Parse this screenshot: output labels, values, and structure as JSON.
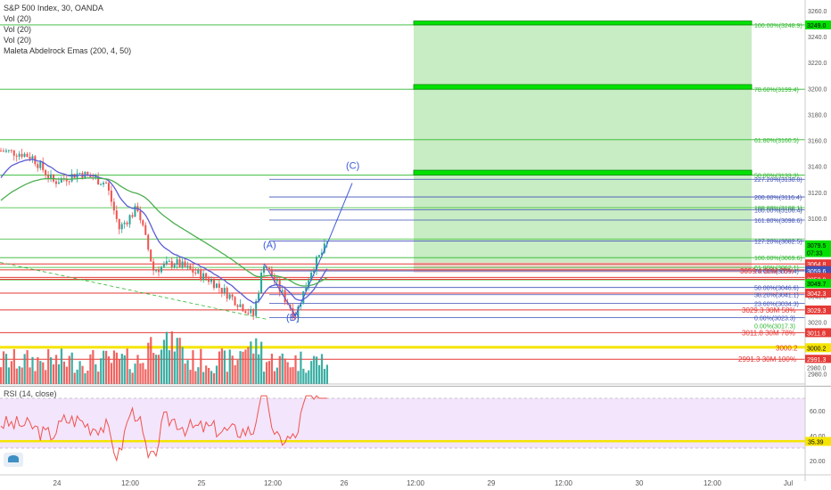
{
  "header": {
    "title": "S&P 500 Index, 30, OANDA",
    "indicators": [
      "Vol (20)",
      "Vol (20)",
      "Vol (20)",
      "Maleta Abdelrock Emas (200, 4, 50)"
    ]
  },
  "rsi": {
    "label": "RSI (14, close)",
    "ticks": [
      60,
      40,
      20
    ],
    "level_label": "35.39"
  },
  "colors": {
    "candle_up": "#26a69a",
    "candle_down": "#ef5350",
    "ema_blue": "#5b5bd6",
    "ema_green": "#4caf50",
    "fib_blue": "#3f51b5",
    "fib_green": "#2db82d",
    "fib_red": "#e53935",
    "zone_green": "#c8ecc3",
    "rsi_bg": "#f3e5fb",
    "rsi_line": "#ef5350",
    "level_yellow": "#f5e400",
    "box_green": "#00e100"
  },
  "chart_data": {
    "type": "candlestick",
    "x_ticks": [
      "24",
      "12:00",
      "25",
      "12:00",
      "26",
      "12:00",
      "29",
      "12:00",
      "30",
      "12:00",
      "Jul"
    ],
    "y_ticks": [
      3260.0,
      3240.0,
      3220.0,
      3200.0,
      3180.0,
      3160.0,
      3140.0,
      3120.0,
      3100.0,
      3080.0,
      3060.0,
      3040.0,
      3020.0,
      3000.0,
      2980.0
    ],
    "price_tags": [
      {
        "label": "3249.0",
        "color": "#00e100",
        "text": "#000"
      },
      {
        "label": "3079.5",
        "color": "#00e100",
        "text": "#000"
      },
      {
        "label": "07:33",
        "color": "#00e100",
        "text": "#000"
      },
      {
        "label": "3064.8",
        "color": "#e53935",
        "text": "#fff"
      },
      {
        "label": "3060.2",
        "color": "#e53935",
        "text": "#fff"
      },
      {
        "label": "3059.6",
        "color": "#3f51b5",
        "text": "#fff"
      },
      {
        "label": "3054.4",
        "color": "#e53935",
        "text": "#fff"
      },
      {
        "label": "3052.9",
        "color": "#e53935",
        "text": "#fff"
      },
      {
        "label": "3049.7",
        "color": "#00e100",
        "text": "#000"
      },
      {
        "label": "3042.3",
        "color": "#e53935",
        "text": "#fff"
      },
      {
        "label": "3029.3",
        "color": "#e53935",
        "text": "#fff"
      },
      {
        "label": "3011.8",
        "color": "#e53935",
        "text": "#fff"
      },
      {
        "label": "3000.2",
        "color": "#f5e400",
        "text": "#000"
      },
      {
        "label": "2991.3",
        "color": "#e53935",
        "text": "#fff"
      },
      {
        "label": "2980.0",
        "color": "#ffffff",
        "text": "#555"
      }
    ],
    "fib_green_labels": [
      "100.00%(3248.9)",
      "78.60%(3199.4)",
      "61.80%(3160.5)",
      "50.00%(3133.3)",
      "180.00%(3108.1)",
      "100.00%(3069.6)",
      "61.80%(3062.1)",
      "0.00%(3017.3)"
    ],
    "fib_blue_labels": [
      "227.20%(3130.0)",
      "200.00%(3116.4)",
      "180.00%(3106.4)",
      "161.80%(3098.6)",
      "127.20%(3082.5)",
      "78.60%(3059.4)",
      "50.00%(3046.6)",
      "38.20%(3041.1)",
      "23.60%(3034.3)",
      "0.00%(3023.3)"
    ],
    "red_level_labels": [
      "3059.4 30M 78%",
      "3029.3 30M 58%",
      "3011.8 30M 78%",
      "3000.2",
      "2991.3 30M 100%"
    ],
    "wave_labels": [
      "(A)",
      "(B)",
      "(C)"
    ],
    "rsi_ticks": [
      60,
      40,
      20
    ]
  }
}
